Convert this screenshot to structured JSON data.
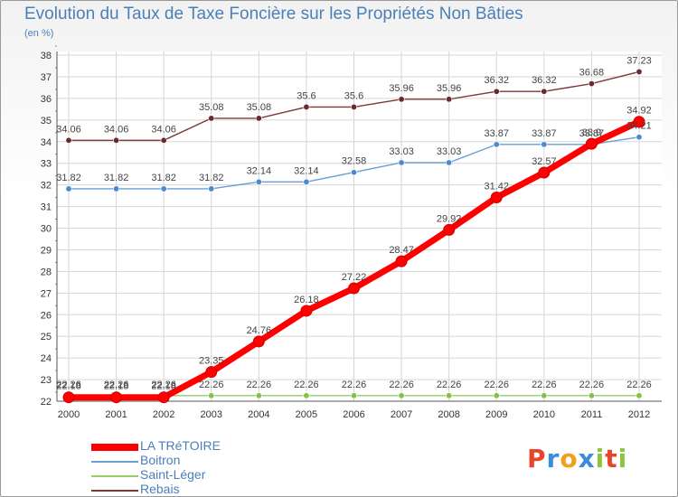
{
  "chart_data": {
    "type": "line",
    "title": "Evolution du Taux de Taxe Foncière sur les Propriétés Non Bâties",
    "subtitle": "(en %)",
    "x": [
      "2000",
      "2001",
      "2002",
      "2003",
      "2004",
      "2005",
      "2006",
      "2007",
      "2008",
      "2009",
      "2010",
      "2011",
      "2012"
    ],
    "ylim": [
      22,
      38
    ],
    "yticks": [
      22,
      23,
      24,
      25,
      26,
      27,
      28,
      29,
      30,
      31,
      32,
      33,
      34,
      35,
      36,
      37,
      38
    ],
    "grid": true,
    "legend_position": "bottom-left",
    "series": [
      {
        "name": "LA TRéTOIRE",
        "color": "#ff0000",
        "marker": "#ff0000",
        "values": [
          22.18,
          22.18,
          22.18,
          23.35,
          24.76,
          26.18,
          27.22,
          28.47,
          29.92,
          31.42,
          32.57,
          33.9,
          34.92
        ],
        "labels": [
          "22.18",
          "22.18",
          "22.18",
          "23.35",
          "24.76",
          "26.18",
          "27.22",
          "28.47",
          "29.92",
          "31.42",
          "32.57",
          "33.9",
          "34.92"
        ]
      },
      {
        "name": "Boitron",
        "color": "#6a9fd4",
        "marker": "#4a8ad0",
        "values": [
          31.82,
          31.82,
          31.82,
          31.82,
          32.14,
          32.14,
          32.58,
          33.03,
          33.03,
          33.87,
          33.87,
          33.87,
          34.21
        ],
        "labels": [
          "31.82",
          "31.82",
          "31.82",
          "31.82",
          "32.14",
          "32.14",
          "32.58",
          "33.03",
          "33.03",
          "33.87",
          "33.87",
          "33.87",
          "34.21"
        ]
      },
      {
        "name": "Saint-Léger",
        "color": "#99cc66",
        "marker": "#88c040",
        "values": [
          22.26,
          22.26,
          22.26,
          22.26,
          22.26,
          22.26,
          22.26,
          22.26,
          22.26,
          22.26,
          22.26,
          22.26,
          22.26
        ],
        "labels": [
          "22.26",
          "22.26",
          "22.26",
          "22.26",
          "22.26",
          "22.26",
          "22.26",
          "22.26",
          "22.26",
          "22.26",
          "22.26",
          "22.26",
          "22.26"
        ]
      },
      {
        "name": "Rebais",
        "color": "#7a3a3a",
        "marker": "#6a2a2a",
        "values": [
          34.06,
          34.06,
          34.06,
          35.08,
          35.08,
          35.6,
          35.6,
          35.96,
          35.96,
          36.32,
          36.32,
          36.68,
          37.23
        ],
        "labels": [
          "34.06",
          "34.06",
          "34.06",
          "35.08",
          "35.08",
          "35.6",
          "35.6",
          "35.96",
          "35.96",
          "36.32",
          "36.32",
          "36.68",
          "37.23"
        ]
      }
    ]
  },
  "logo": {
    "letters": [
      "P",
      "r",
      "o",
      "x",
      "i",
      "t",
      "i"
    ],
    "colors": [
      "#e8452c",
      "#3c8dd9",
      "#f0a020",
      "#3c8dd9",
      "#8cc63e",
      "#e8452c",
      "#8cc63e"
    ]
  }
}
